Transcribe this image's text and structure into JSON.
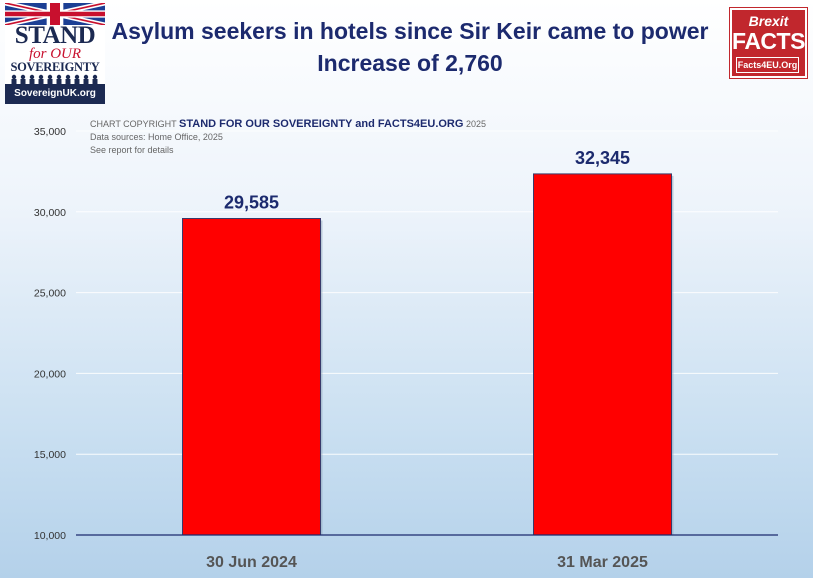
{
  "header": {
    "title": "Asylum seekers in hotels since Sir Keir came to power",
    "subtitle": "Increase of 2,760"
  },
  "logo_left": {
    "line1": "STAND",
    "line2": "for OUR",
    "line3": "SOVEREIGNTY",
    "url": "SovereignUK.org"
  },
  "logo_right": {
    "line1": "Brexit",
    "line2": "FACTS",
    "url": "Facts4EU.Org",
    "color": "#c1272d"
  },
  "copyright": {
    "prefix": "CHART COPYRIGHT",
    "owners": "STAND FOR OUR SOVEREIGNTY and  FACTS4EU.ORG",
    "year": "2025",
    "sources": "Data sources: Home Office, 2025",
    "note": "See report for details"
  },
  "chart_data": {
    "type": "bar",
    "categories": [
      "30 Jun 2024",
      "31 Mar 2025"
    ],
    "values": [
      29585,
      32345
    ],
    "data_labels": [
      "29,585",
      "32,345"
    ],
    "title": "Asylum seekers in hotels since Sir Keir came to power",
    "subtitle": "Increase of 2,760",
    "xlabel": "",
    "ylabel": "",
    "ylim": [
      10000,
      35000
    ],
    "yticks": [
      10000,
      15000,
      20000,
      25000,
      30000,
      35000
    ],
    "ytick_labels": [
      "10,000",
      "15,000",
      "20,000",
      "25,000",
      "30,000",
      "35,000"
    ],
    "grid": true,
    "legend": "none",
    "bar_color": "#ff0000",
    "label_color": "#1c2a6e"
  }
}
